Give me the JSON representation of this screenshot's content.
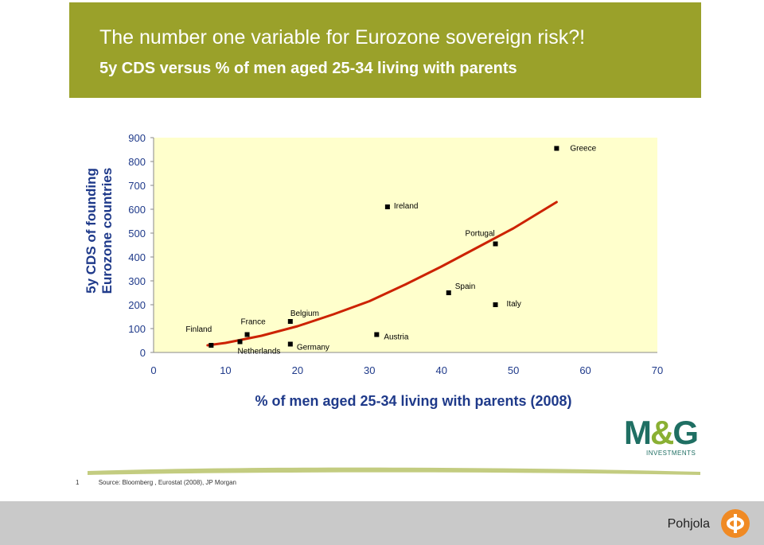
{
  "header": {
    "title": "The number one variable for Eurozone sovereign risk?!",
    "subtitle": "5y CDS versus % of men aged 25-34 living with parents"
  },
  "chart_data": {
    "type": "scatter",
    "xlabel": "% of men aged 25-34 living with parents (2008)",
    "ylabel": "5y CDS of founding Eurozone countries",
    "xlim": [
      0,
      70
    ],
    "ylim": [
      0,
      900
    ],
    "x_ticks": [
      0,
      10,
      20,
      30,
      40,
      50,
      60,
      70
    ],
    "y_ticks": [
      0,
      100,
      200,
      300,
      400,
      500,
      600,
      700,
      800,
      900
    ],
    "grid": false,
    "points": [
      {
        "label": "Finland",
        "x": 8,
        "y": 30
      },
      {
        "label": "Netherlands",
        "x": 12,
        "y": 45
      },
      {
        "label": "France",
        "x": 13,
        "y": 75
      },
      {
        "label": "Belgium",
        "x": 19,
        "y": 130
      },
      {
        "label": "Germany",
        "x": 19,
        "y": 35
      },
      {
        "label": "Austria",
        "x": 31,
        "y": 75
      },
      {
        "label": "Ireland",
        "x": 32.5,
        "y": 610
      },
      {
        "label": "Spain",
        "x": 41,
        "y": 250
      },
      {
        "label": "Italy",
        "x": 47.5,
        "y": 200
      },
      {
        "label": "Portugal",
        "x": 47.5,
        "y": 455
      },
      {
        "label": "Greece",
        "x": 56,
        "y": 855
      }
    ],
    "trendline": {
      "type": "polynomial",
      "x": [
        7.5,
        10,
        15,
        20,
        25,
        30,
        35,
        40,
        45,
        50,
        56
      ],
      "y": [
        30,
        40,
        70,
        110,
        160,
        215,
        285,
        360,
        440,
        520,
        630
      ]
    },
    "colors": {
      "plot_bg": "#ffffcc",
      "trend": "#cc2200",
      "points": "#000000"
    }
  },
  "logo": {
    "mark_left": "M",
    "mark_amp": "&",
    "mark_right": "G",
    "sub": "INVESTMENTS"
  },
  "footnote": {
    "number": "1",
    "text": "Source: Bloomberg , Eurostat (2008), JP Morgan"
  },
  "footer": {
    "brand": "Pohjola"
  },
  "colors": {
    "banner": "#9aa12a",
    "axis_text": "#1f3a8a",
    "footer_bg": "#c9c9c9",
    "brand_icon": "#f08a24"
  }
}
